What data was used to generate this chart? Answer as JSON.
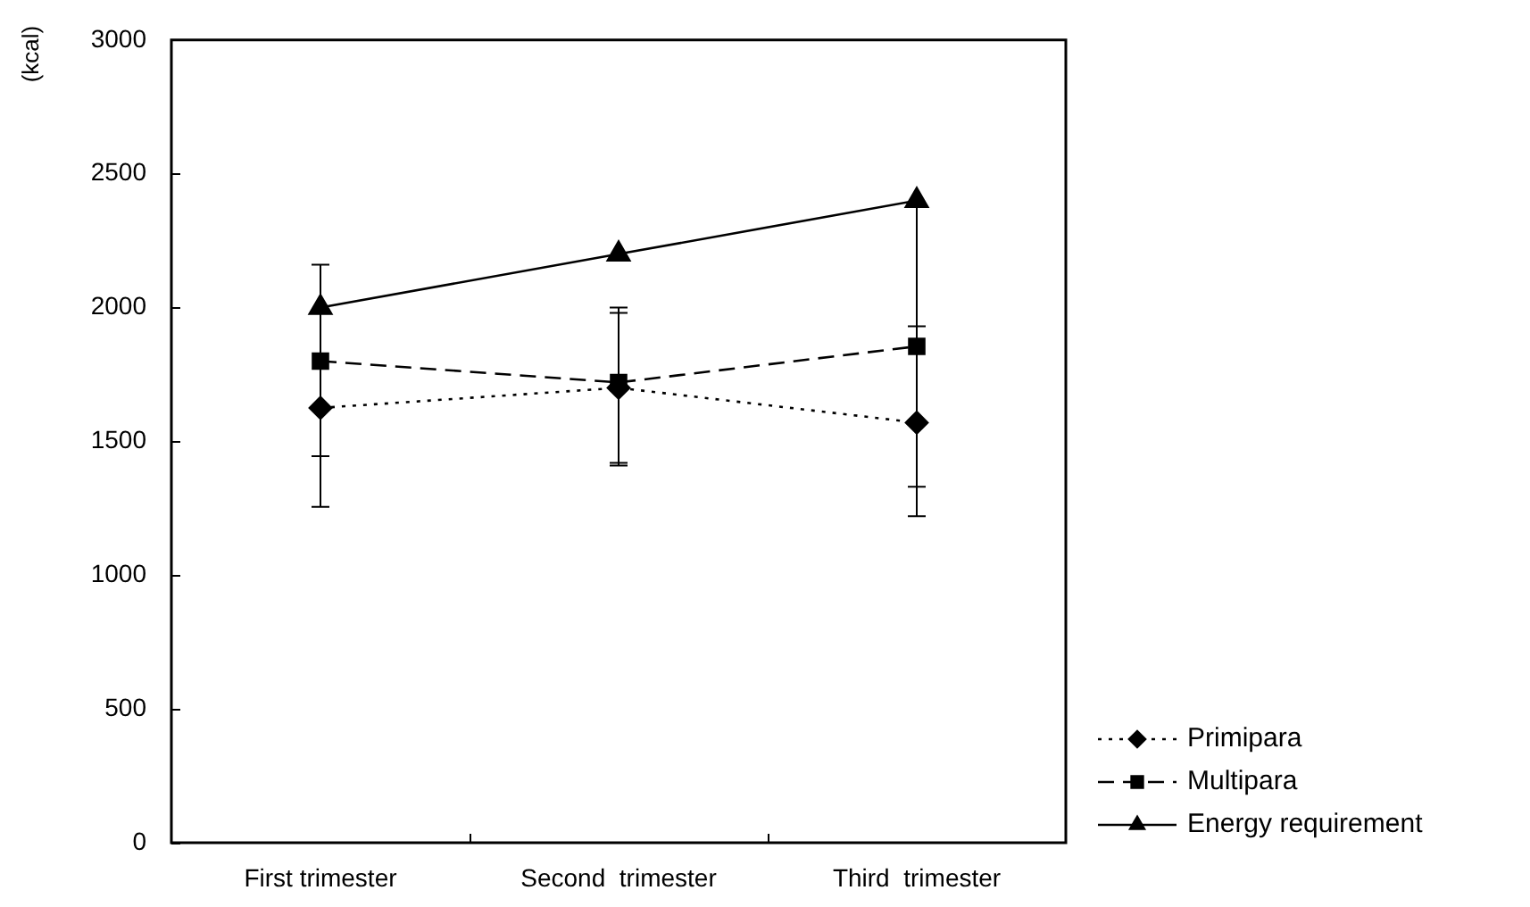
{
  "chart_data": {
    "type": "line",
    "ylabel": "(kcal)",
    "categories": [
      "First trimester",
      "Second  trimester",
      "Third  trimester"
    ],
    "series": [
      {
        "name": "Primipara",
        "color": "#000000",
        "marker": "diamond",
        "line_style": "dotted",
        "values": [
          1625,
          1700,
          1570
        ],
        "errors": [
          [
            1255,
            1995
          ],
          [
            1410,
            1980
          ],
          [
            1220,
            1930
          ]
        ]
      },
      {
        "name": "Multipara",
        "color": "#000000",
        "marker": "square",
        "line_style": "dashed",
        "values": [
          1800,
          1720,
          1855
        ],
        "errors": [
          [
            1445,
            2160
          ],
          [
            1420,
            2000
          ],
          [
            1330,
            2380
          ]
        ]
      },
      {
        "name": "Energy requirement",
        "color": "#000000",
        "marker": "triangle",
        "line_style": "solid",
        "values": [
          2000,
          2200,
          2400
        ]
      }
    ],
    "ylim": [
      0,
      3000
    ],
    "yticks": [
      0,
      500,
      1000,
      1500,
      2000,
      2500,
      3000
    ],
    "grid": false,
    "legend": "bottom right"
  }
}
